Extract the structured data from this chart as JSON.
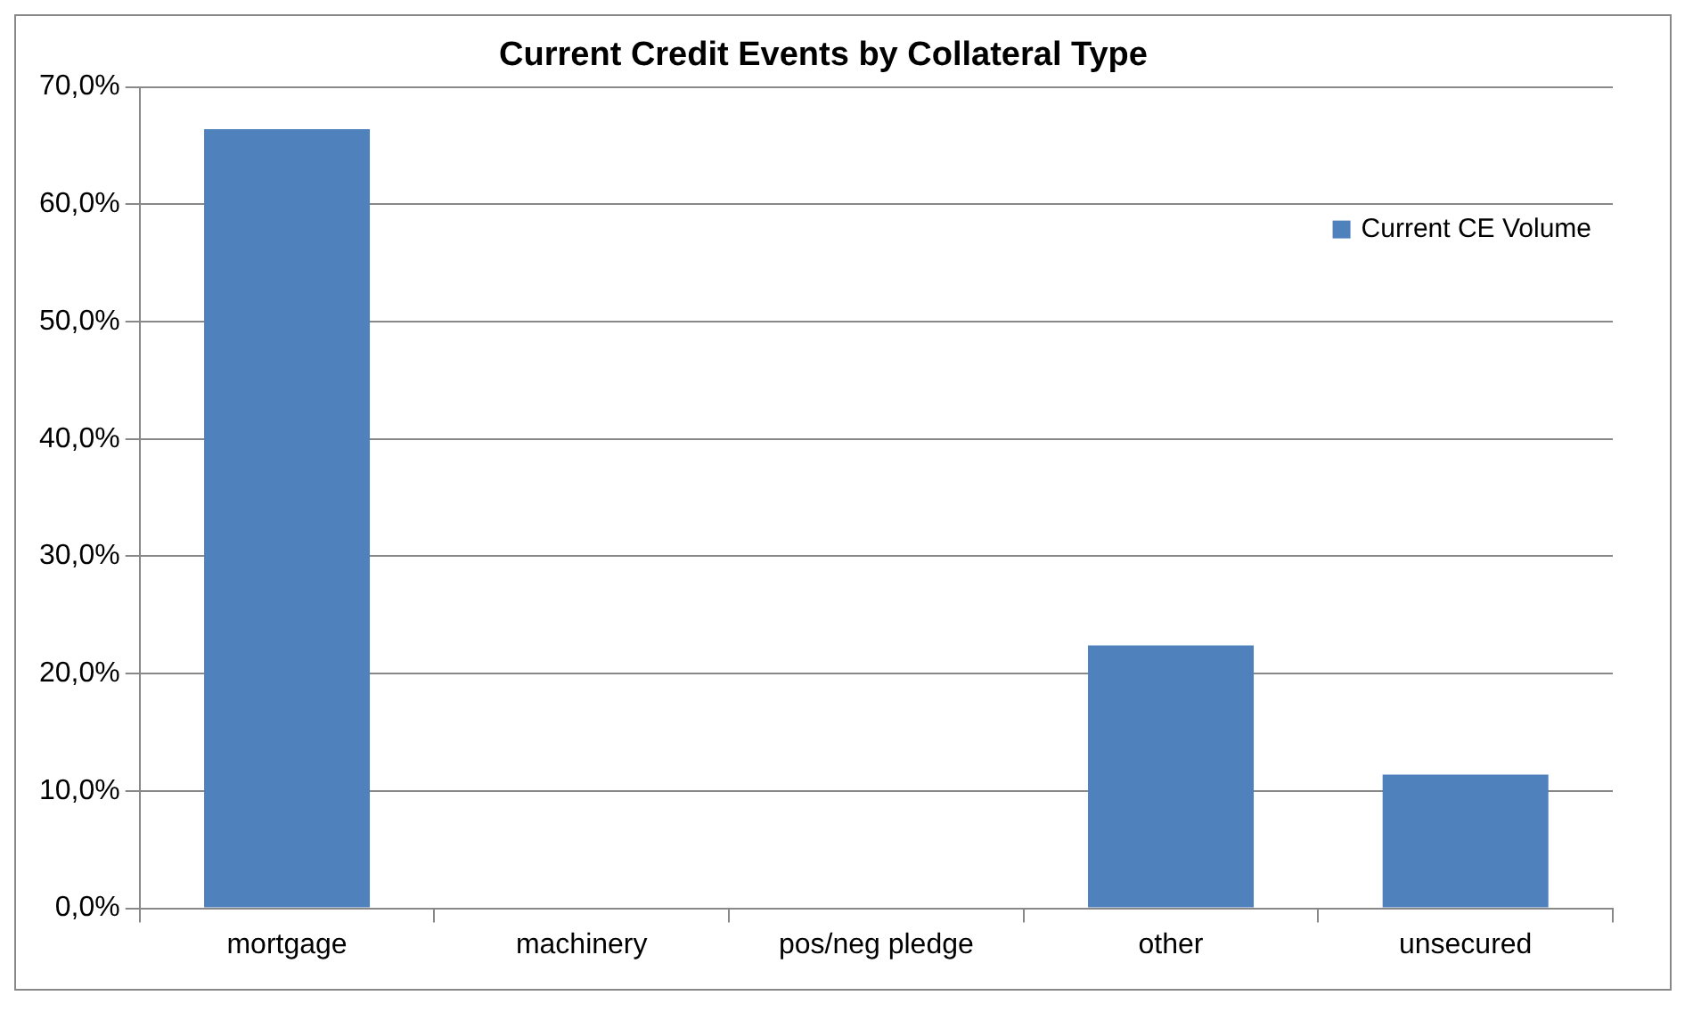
{
  "chart_data": {
    "type": "bar",
    "title": "Current Credit Events by Collateral Type",
    "categories": [
      "mortgage",
      "machinery",
      "pos/neg pledge",
      "other",
      "unsecured"
    ],
    "series": [
      {
        "name": "Current CE Volume",
        "color": "#4f81bd",
        "values": [
          66.4,
          0,
          0,
          22.4,
          11.4
        ]
      }
    ],
    "ylim": [
      0,
      70
    ],
    "yticks": [
      {
        "value": 0,
        "label": "0,0%"
      },
      {
        "value": 10,
        "label": "10,0%"
      },
      {
        "value": 20,
        "label": "20,0%"
      },
      {
        "value": 30,
        "label": "30,0%"
      },
      {
        "value": 40,
        "label": "40,0%"
      },
      {
        "value": 50,
        "label": "50,0%"
      },
      {
        "value": 60,
        "label": "60,0%"
      },
      {
        "value": 70,
        "label": "70,0%"
      }
    ],
    "grid": "y",
    "legend": "top right"
  }
}
